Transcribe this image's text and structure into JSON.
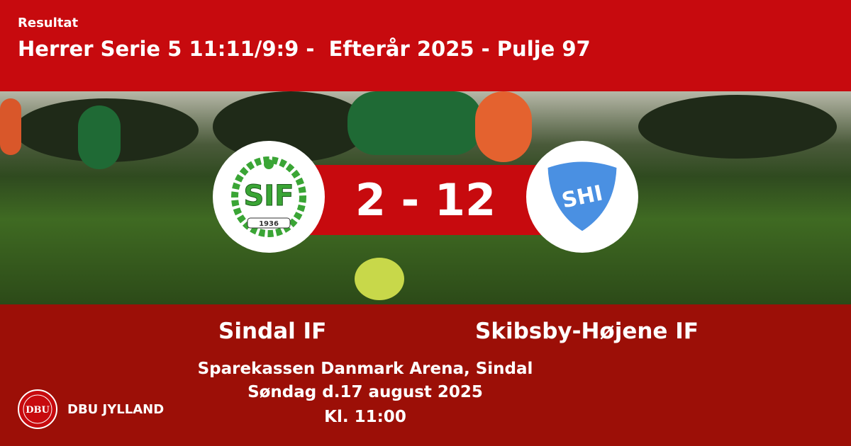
{
  "header": {
    "label": "Resultat",
    "title": "Herrer Serie 5 11:11/9:9 -  Efterår 2025 - Pulje 97"
  },
  "match": {
    "score": "2 - 12",
    "home_team": "Sindal IF",
    "away_team": "Skibsby-Højene IF",
    "home_logo_text": "SIF",
    "home_logo_year": "1936",
    "away_logo_text": "SHI",
    "venue": "Sparekassen Danmark Arena, Sindal",
    "date": "Søndag d.17 august 2025",
    "time": "Kl. 11:00"
  },
  "footer": {
    "brand": "DBU JYLLAND",
    "logo_text": "DBU"
  },
  "colors": {
    "header_red": "#c70a0e",
    "footer_red": "#9c0f07",
    "home_green": "#3aa535",
    "away_blue": "#4a90e2"
  }
}
